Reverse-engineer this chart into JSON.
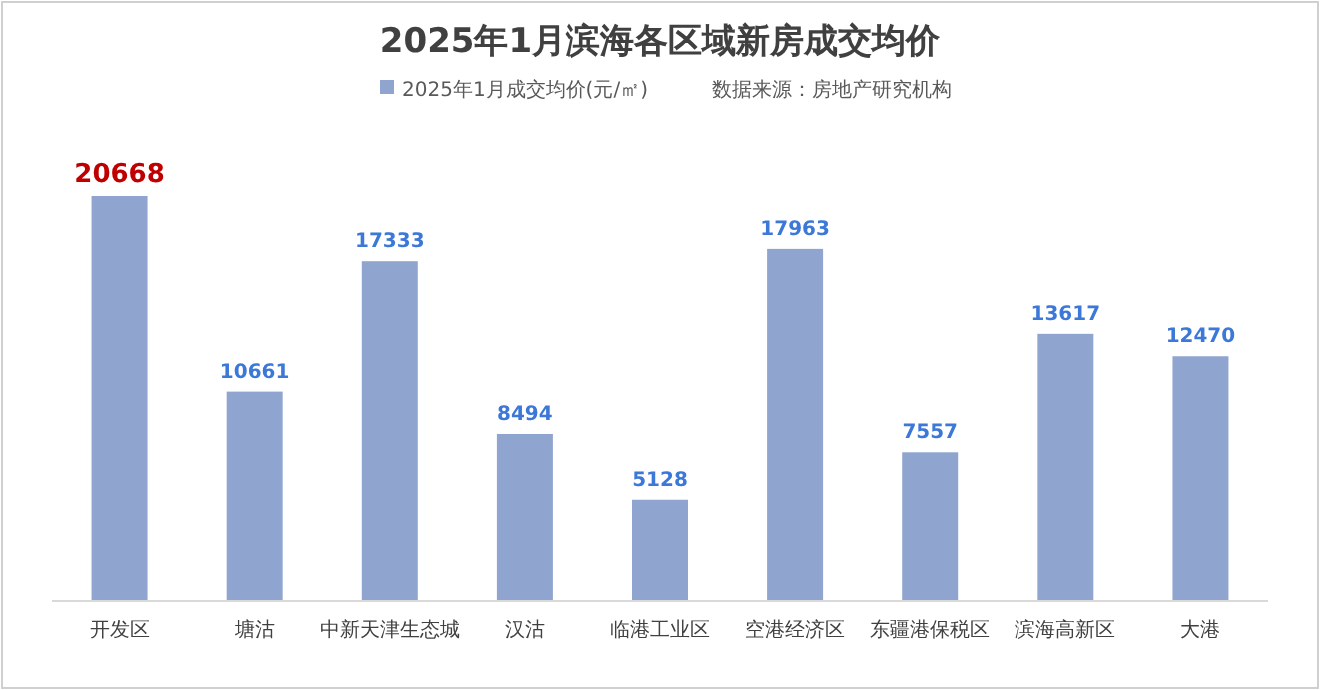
{
  "chart_data": {
    "type": "bar",
    "title": "2025年1月滨海各区域新房成交均价",
    "categories": [
      "开发区",
      "塘沽",
      "中新天津生态城",
      "汉沽",
      "临港工业区",
      "空港经济区",
      "东疆港保税区",
      "滨海高新区",
      "大港"
    ],
    "series": [
      {
        "name": "2025年1月成交均价(元/㎡)",
        "color": "#8fa5d0",
        "values": [
          20668,
          10661,
          17333,
          8494,
          5128,
          17963,
          7557,
          13617,
          12470
        ]
      }
    ],
    "data_labels": true,
    "legend": "top",
    "grid": false,
    "annotations": [
      "数据来源：房地产研究机构"
    ]
  }
}
